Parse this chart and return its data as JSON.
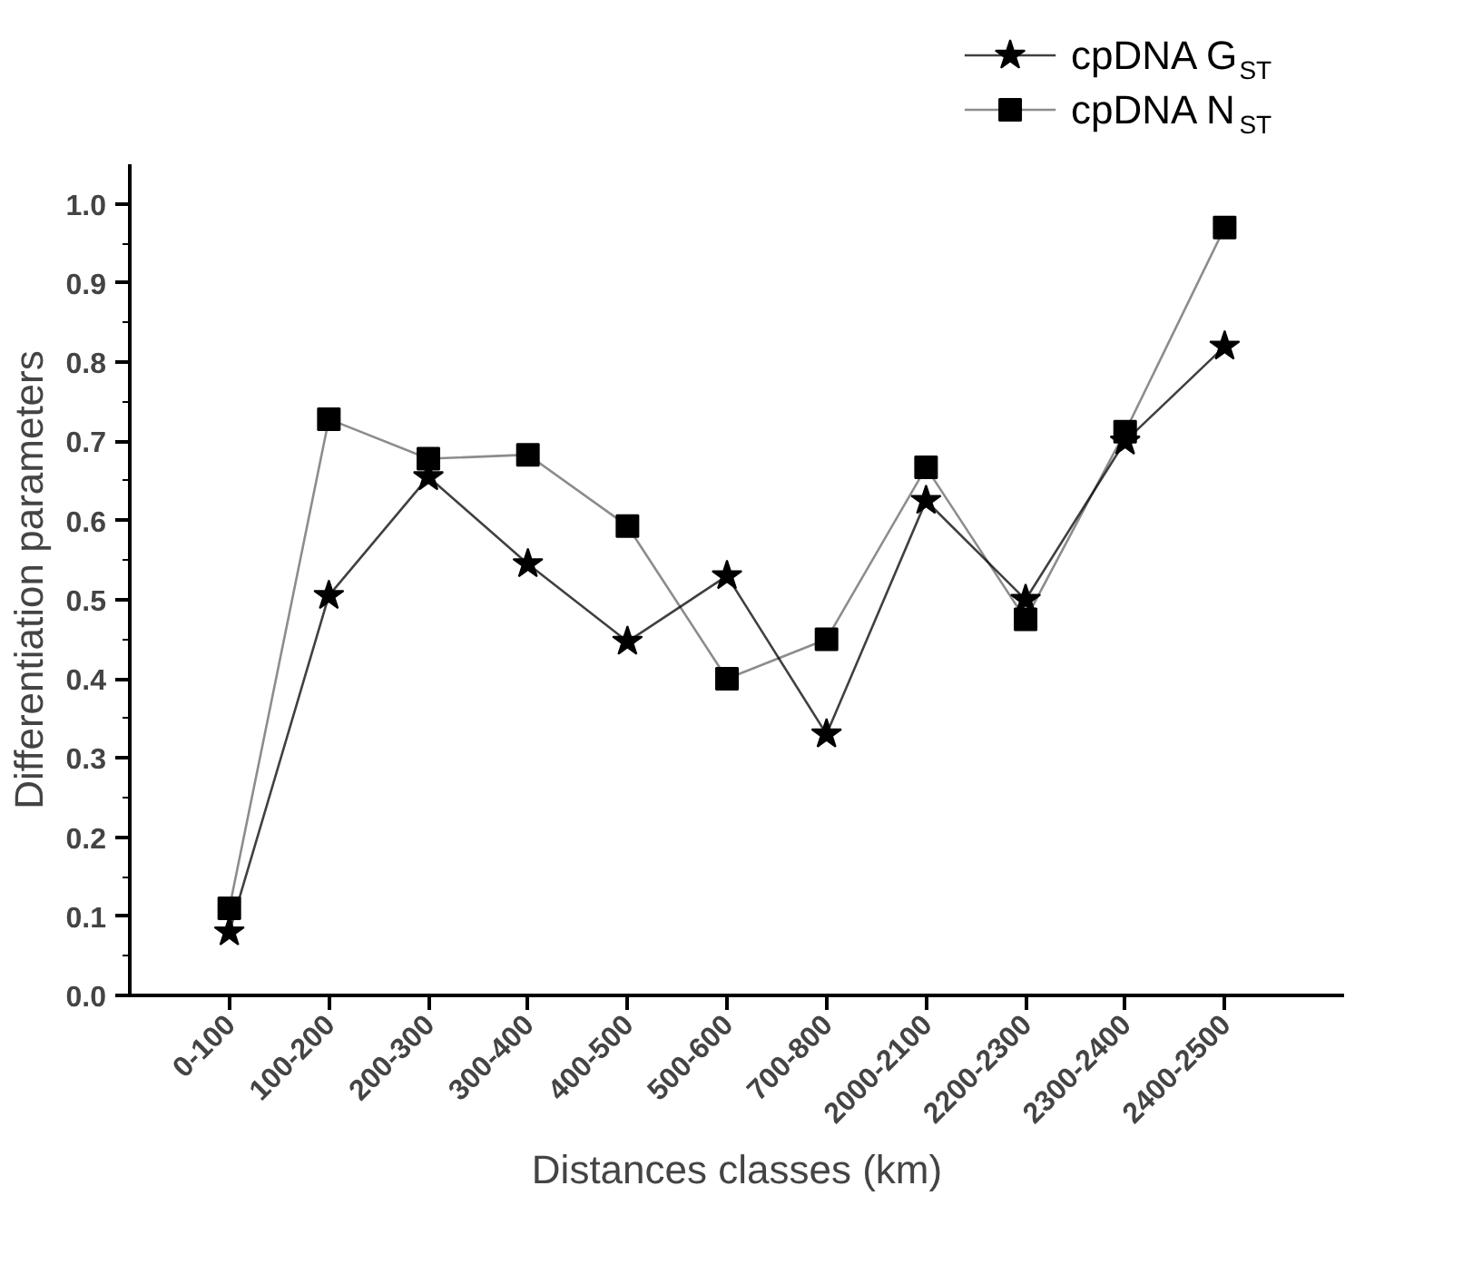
{
  "chart_data": {
    "type": "line",
    "xlabel": "Distances classes (km)",
    "ylabel": "Differentiation parameters",
    "categories": [
      "0-100",
      "100-200",
      "200-300",
      "300-400",
      "400-500",
      "500-600",
      "700-800",
      "2000-2100",
      "2200-2300",
      "2300-2400",
      "2400-2500"
    ],
    "series": [
      {
        "name": "cpDNA G$_{ST}$",
        "color": "#000000",
        "marker": "star",
        "values": [
          0.08,
          0.505,
          0.655,
          0.545,
          0.447,
          0.53,
          0.33,
          0.625,
          0.5,
          0.7,
          0.82
        ]
      },
      {
        "name": "cpDNA N$_{ST}$",
        "color": "#000000",
        "marker": "square",
        "values": [
          0.11,
          0.728,
          0.678,
          0.683,
          0.593,
          0.4,
          0.45,
          0.667,
          0.475,
          0.712,
          0.97
        ]
      }
    ],
    "ylim": [
      0,
      1.05
    ],
    "yticks": [
      {
        "value": 0,
        "label": "0.0"
      },
      0.1,
      0.2,
      0.3,
      0.4,
      0.5,
      0.6,
      0.7,
      0.8,
      0.9,
      {
        "value": 1,
        "label": "1.0"
      }
    ],
    "grid": false,
    "legend": "top right",
    "line_style": "solid"
  }
}
